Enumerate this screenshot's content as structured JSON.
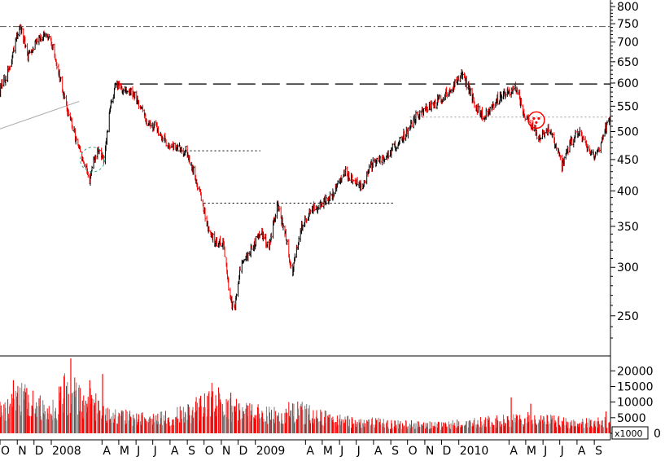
{
  "chart_data": [
    {
      "type": "candlestick",
      "log_scale": true,
      "ylim": [
        215,
        820
      ],
      "y_ticks": [
        "800",
        "750",
        "700",
        "650",
        "600",
        "550",
        "500",
        "450",
        "400",
        "350",
        "300",
        "250"
      ],
      "x_tick_labels": [
        "O",
        "N",
        "D",
        "2008",
        "A",
        "M",
        "J",
        "J",
        "A",
        "S",
        "O",
        "N",
        "D",
        "2009",
        "A",
        "M",
        "J",
        "J",
        "A",
        "S",
        "O",
        "N",
        "D",
        "2010",
        "A",
        "M",
        "J",
        "J",
        "A",
        "S"
      ],
      "x_tick_positions": [
        "2007-10",
        "2007-11",
        "2007-12",
        "2008-01",
        "2008-04",
        "2008-05",
        "2008-06",
        "2008-07",
        "2008-08",
        "2008-09",
        "2008-10",
        "2008-11",
        "2008-12",
        "2009-01",
        "2009-04",
        "2009-05",
        "2009-06",
        "2009-07",
        "2009-08",
        "2009-09",
        "2009-10",
        "2009-11",
        "2009-12",
        "2010-01",
        "2010-04",
        "2010-05",
        "2010-06",
        "2010-07",
        "2010-08",
        "2010-09"
      ],
      "x_range": [
        "2007-10-01",
        "2010-09-30"
      ],
      "trend_path": [
        [
          "2007-10-01",
          585
        ],
        [
          "2007-10-20",
          640
        ],
        [
          "2007-11-05",
          745
        ],
        [
          "2007-11-20",
          665
        ],
        [
          "2007-12-10",
          718
        ],
        [
          "2007-12-31",
          705
        ],
        [
          "2008-01-10",
          650
        ],
        [
          "2008-01-25",
          560
        ],
        [
          "2008-02-10",
          500
        ],
        [
          "2008-02-25",
          450
        ],
        [
          "2008-03-10",
          418
        ],
        [
          "2008-03-25",
          470
        ],
        [
          "2008-04-05",
          445
        ],
        [
          "2008-04-15",
          540
        ],
        [
          "2008-04-25",
          595
        ],
        [
          "2008-05-15",
          585
        ],
        [
          "2008-06-01",
          570
        ],
        [
          "2008-06-20",
          520
        ],
        [
          "2008-07-10",
          505
        ],
        [
          "2008-07-25",
          480
        ],
        [
          "2008-08-10",
          470
        ],
        [
          "2008-08-31",
          465
        ],
        [
          "2008-09-10",
          435
        ],
        [
          "2008-09-25",
          395
        ],
        [
          "2008-10-05",
          355
        ],
        [
          "2008-10-20",
          330
        ],
        [
          "2008-11-05",
          330
        ],
        [
          "2008-11-15",
          270
        ],
        [
          "2008-11-25",
          255
        ],
        [
          "2008-12-05",
          300
        ],
        [
          "2008-12-25",
          320
        ],
        [
          "2009-01-10",
          345
        ],
        [
          "2009-01-25",
          325
        ],
        [
          "2009-02-10",
          380
        ],
        [
          "2009-02-25",
          335
        ],
        [
          "2009-03-08",
          292
        ],
        [
          "2009-03-25",
          350
        ],
        [
          "2009-04-10",
          370
        ],
        [
          "2009-04-30",
          380
        ],
        [
          "2009-05-20",
          395
        ],
        [
          "2009-06-10",
          430
        ],
        [
          "2009-06-25",
          420
        ],
        [
          "2009-07-10",
          405
        ],
        [
          "2009-07-31",
          445
        ],
        [
          "2009-08-20",
          450
        ],
        [
          "2009-09-10",
          475
        ],
        [
          "2009-09-30",
          500
        ],
        [
          "2009-10-20",
          535
        ],
        [
          "2009-11-10",
          550
        ],
        [
          "2009-11-30",
          565
        ],
        [
          "2009-12-20",
          590
        ],
        [
          "2010-01-05",
          620
        ],
        [
          "2010-01-15",
          600
        ],
        [
          "2010-01-31",
          550
        ],
        [
          "2010-02-15",
          530
        ],
        [
          "2010-03-05",
          555
        ],
        [
          "2010-03-25",
          580
        ],
        [
          "2010-04-15",
          590
        ],
        [
          "2010-04-25",
          545
        ],
        [
          "2010-05-10",
          510
        ],
        [
          "2010-05-25",
          490
        ],
        [
          "2010-06-10",
          505
        ],
        [
          "2010-06-25",
          470
        ],
        [
          "2010-07-05",
          440
        ],
        [
          "2010-07-20",
          480
        ],
        [
          "2010-08-05",
          500
        ],
        [
          "2010-08-20",
          470
        ],
        [
          "2010-09-05",
          455
        ],
        [
          "2010-09-20",
          500
        ],
        [
          "2010-09-30",
          535
        ]
      ],
      "reference_lines": [
        {
          "style": "dash-dot",
          "value": 742,
          "from": "2007-10-01",
          "to": "2010-09-30",
          "color": "#555555"
        },
        {
          "style": "long-dash",
          "value": 598,
          "from": "2008-04-25",
          "to": "2010-09-30",
          "color": "#222222"
        },
        {
          "style": "dotted",
          "value": 528,
          "from": "2009-10-05",
          "to": "2010-09-30",
          "color": "#999999"
        },
        {
          "style": "dotted",
          "value": 465,
          "from": "2008-08-15",
          "to": "2009-01-10",
          "color": "#000000"
        },
        {
          "style": "dotted",
          "value": 382,
          "from": "2008-10-01",
          "to": "2009-09-05",
          "color": "#000000"
        },
        {
          "style": "solid",
          "from_point": [
            "2007-10-01",
            505
          ],
          "to_point": [
            "2008-02-20",
            560
          ],
          "color": "#aaaaaa"
        }
      ],
      "annotations": [
        {
          "shape": "dashed-circle",
          "center": [
            "2008-03-15",
            450
          ],
          "radius_days": 22,
          "color": "#2aa58a"
        },
        {
          "shape": "sad-face-circle",
          "center": [
            "2010-05-20",
            522
          ],
          "radius_days": 4,
          "color": "#ff0000"
        }
      ],
      "up_color": "#000000",
      "down_color": "#ff0000"
    },
    {
      "type": "bar",
      "panel": "volume",
      "y_ticks": [
        "20000",
        "15000",
        "10000",
        "5000",
        "0"
      ],
      "ylim": [
        0,
        24000
      ],
      "units_label": "x1000",
      "volume_profile": [
        [
          "2007-10-01",
          7000
        ],
        [
          "2007-11-15",
          11000
        ],
        [
          "2007-12-31",
          6000
        ],
        [
          "2008-01-25",
          13000
        ],
        [
          "2008-03-15",
          9000
        ],
        [
          "2008-04-30",
          5000
        ],
        [
          "2008-06-30",
          4500
        ],
        [
          "2008-08-31",
          6000
        ],
        [
          "2008-09-25",
          9000
        ],
        [
          "2008-10-15",
          11000
        ],
        [
          "2008-11-30",
          7000
        ],
        [
          "2009-01-31",
          5500
        ],
        [
          "2009-03-15",
          7000
        ],
        [
          "2009-05-31",
          4000
        ],
        [
          "2009-08-31",
          3000
        ],
        [
          "2009-11-30",
          2500
        ],
        [
          "2010-02-15",
          3500
        ],
        [
          "2010-05-15",
          4500
        ],
        [
          "2010-07-31",
          3000
        ],
        [
          "2010-09-30",
          3500
        ]
      ],
      "spikes": [
        [
          "2007-10-25",
          17000
        ],
        [
          "2007-11-18",
          14500
        ],
        [
          "2008-01-18",
          15000
        ],
        [
          "2008-01-24",
          18000
        ],
        [
          "2008-02-05",
          24000
        ],
        [
          "2008-03-10",
          17000
        ],
        [
          "2008-04-02",
          19000
        ],
        [
          "2008-09-25",
          12000
        ],
        [
          "2008-10-15",
          13500
        ],
        [
          "2008-11-18",
          13000
        ],
        [
          "2010-04-05",
          11500
        ],
        [
          "2010-05-10",
          9500
        ],
        [
          "2010-09-22",
          7000
        ]
      ],
      "up_color": "#7a7a7a",
      "down_color": "#ff0000"
    }
  ]
}
